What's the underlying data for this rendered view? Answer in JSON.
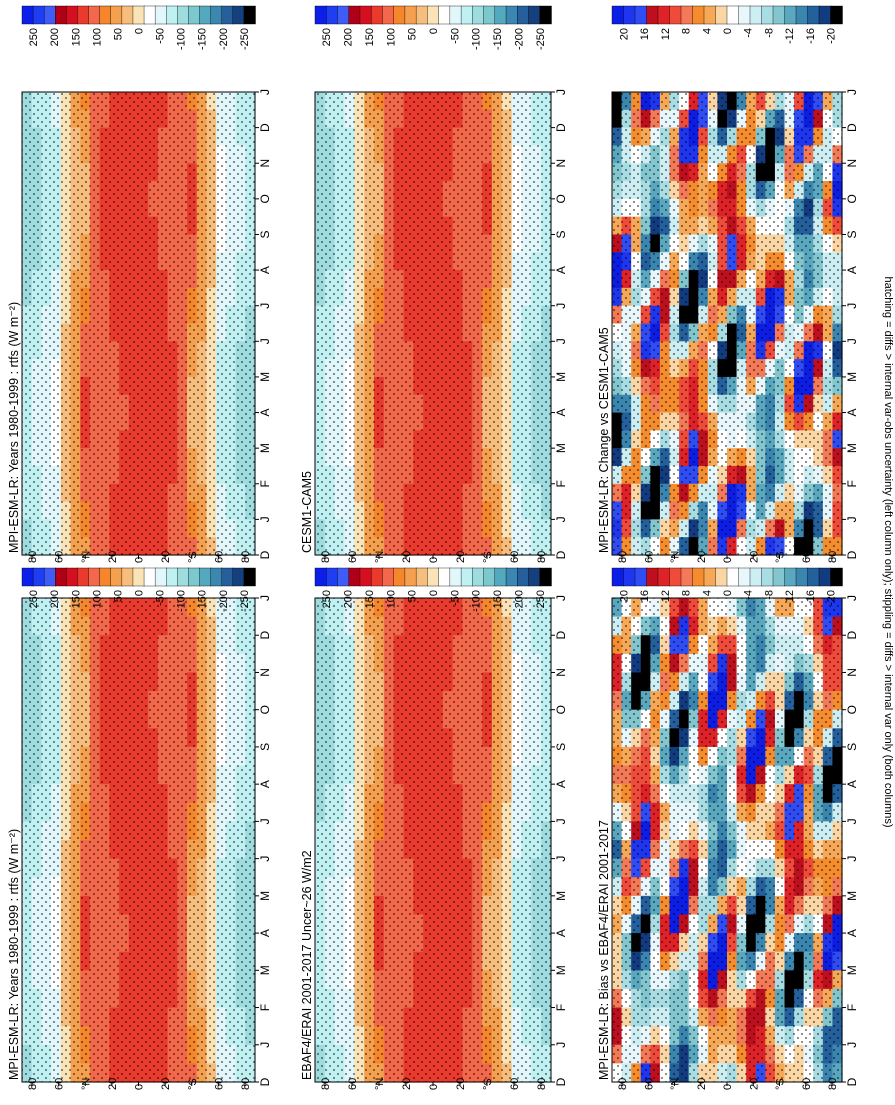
{
  "colors": {
    "abs_scale": [
      "#0b1fe8",
      "#1f3df2",
      "#3f5cf6",
      "#b00018",
      "#d40f1f",
      "#ea3a2e",
      "#f3684a",
      "#f5862b",
      "#f5a04f",
      "#f7bd7d",
      "#fbe3b8",
      "#ffffff",
      "#e2f7fb",
      "#bff0f2",
      "#9fdcdf",
      "#7cc8cf",
      "#55a9bf",
      "#3b87b1",
      "#26609c",
      "#163f7e",
      "#000000"
    ],
    "diff_scale": [
      "#0c1ee6",
      "#1e36ef",
      "#2f4cf5",
      "#bf0f1f",
      "#df2228",
      "#f04a3a",
      "#f47956",
      "#f58c2d",
      "#f7a857",
      "#fbd6a5",
      "#ffffff",
      "#e7f7fb",
      "#cdeff4",
      "#a8dde3",
      "#82c6d0",
      "#5aa8bf",
      "#3a86b0",
      "#23609c",
      "#123c7f",
      "#000000"
    ]
  },
  "footer_text": "hatching = diffs > internal var-obs uncertainty (left column only); stippling = diffs > internal var only (both columns)",
  "chart_data": [
    {
      "type": "heatmap",
      "title": "MPI-ESM-LR: Years 1980-1999 : rtfs (W m⁻²)",
      "x_ticks": [
        "D",
        "J",
        "F",
        "M",
        "A",
        "M",
        "J",
        "J",
        "A",
        "S",
        "O",
        "N",
        "D",
        "J"
      ],
      "y_ticks": [
        "80",
        "60",
        "°N",
        "20",
        "0",
        "20",
        "°S",
        "60",
        "80"
      ],
      "y_values": [
        80,
        60,
        40,
        20,
        0,
        -20,
        -40,
        -60,
        -80
      ],
      "colorbar": [
        "250",
        "200",
        "150",
        "100",
        "50",
        "0",
        "-50",
        "-100",
        "-150",
        "-200",
        "-250"
      ],
      "colorbar_range": [
        -250,
        250
      ]
    },
    {
      "type": "heatmap",
      "title": "MPI-ESM-LR: Years 1980-1999 : rtfs (W m⁻²)",
      "x_ticks": [
        "D",
        "J",
        "F",
        "M",
        "A",
        "M",
        "J",
        "J",
        "A",
        "S",
        "O",
        "N",
        "D",
        "J"
      ],
      "y_ticks": [
        "80",
        "60",
        "°N",
        "20",
        "0",
        "20",
        "°S",
        "60",
        "80"
      ],
      "y_values": [
        80,
        60,
        40,
        20,
        0,
        -20,
        -40,
        -60,
        -80
      ],
      "colorbar": [
        "250",
        "200",
        "150",
        "100",
        "50",
        "0",
        "-50",
        "-100",
        "-150",
        "-200",
        "-250"
      ],
      "colorbar_range": [
        -250,
        250
      ]
    },
    {
      "type": "heatmap",
      "title": "EBAF4/ERAI 2001-2017 Uncer~26 W/m2",
      "x_ticks": [
        "D",
        "J",
        "F",
        "M",
        "A",
        "M",
        "J",
        "J",
        "A",
        "S",
        "O",
        "N",
        "D",
        "J"
      ],
      "y_ticks": [
        "80",
        "60",
        "°N",
        "20",
        "0",
        "20",
        "°S",
        "60",
        "80"
      ],
      "y_values": [
        80,
        60,
        40,
        20,
        0,
        -20,
        -40,
        -60,
        -80
      ],
      "colorbar": [
        "250",
        "200",
        "150",
        "100",
        "50",
        "0",
        "-50",
        "-100",
        "-150",
        "-200",
        "-250"
      ],
      "colorbar_range": [
        -250,
        250
      ]
    },
    {
      "type": "heatmap",
      "title": "CESM1-CAM5",
      "x_ticks": [
        "D",
        "J",
        "F",
        "M",
        "A",
        "M",
        "J",
        "J",
        "A",
        "S",
        "O",
        "N",
        "D",
        "J"
      ],
      "y_ticks": [
        "80",
        "60",
        "°N",
        "20",
        "0",
        "20",
        "°S",
        "60",
        "80"
      ],
      "y_values": [
        80,
        60,
        40,
        20,
        0,
        -20,
        -40,
        -60,
        -80
      ],
      "colorbar": [
        "250",
        "200",
        "150",
        "100",
        "50",
        "0",
        "-50",
        "-100",
        "-150",
        "-200",
        "-250"
      ],
      "colorbar_range": [
        -250,
        250
      ]
    },
    {
      "type": "heatmap",
      "title": "MPI-ESM-LR: Bias vs EBAF4/ERAI 2001-2017",
      "x_ticks": [
        "D",
        "J",
        "F",
        "M",
        "A",
        "M",
        "J",
        "J",
        "A",
        "S",
        "O",
        "N",
        "D",
        "J"
      ],
      "y_ticks": [
        "80",
        "60",
        "°N",
        "20",
        "0",
        "20",
        "°S",
        "60",
        "80"
      ],
      "y_values": [
        80,
        60,
        40,
        20,
        0,
        -20,
        -40,
        -60,
        -80
      ],
      "colorbar": [
        "20",
        "16",
        "12",
        "8",
        "4",
        "0",
        "-4",
        "-8",
        "-12",
        "-16",
        "-20"
      ],
      "colorbar_range": [
        -20,
        20
      ]
    },
    {
      "type": "heatmap",
      "title": "MPI-ESM-LR: Change vs CESM1-CAM5",
      "x_ticks": [
        "D",
        "J",
        "F",
        "M",
        "A",
        "M",
        "J",
        "J",
        "A",
        "S",
        "O",
        "N",
        "D",
        "J"
      ],
      "y_ticks": [
        "80",
        "60",
        "°N",
        "20",
        "0",
        "20",
        "°S",
        "60",
        "80"
      ],
      "y_values": [
        80,
        60,
        40,
        20,
        0,
        -20,
        -40,
        -60,
        -80
      ],
      "colorbar": [
        "20",
        "16",
        "12",
        "8",
        "4",
        "0",
        "-4",
        "-8",
        "-12",
        "-16",
        "-20"
      ],
      "colorbar_range": [
        -20,
        20
      ]
    }
  ]
}
